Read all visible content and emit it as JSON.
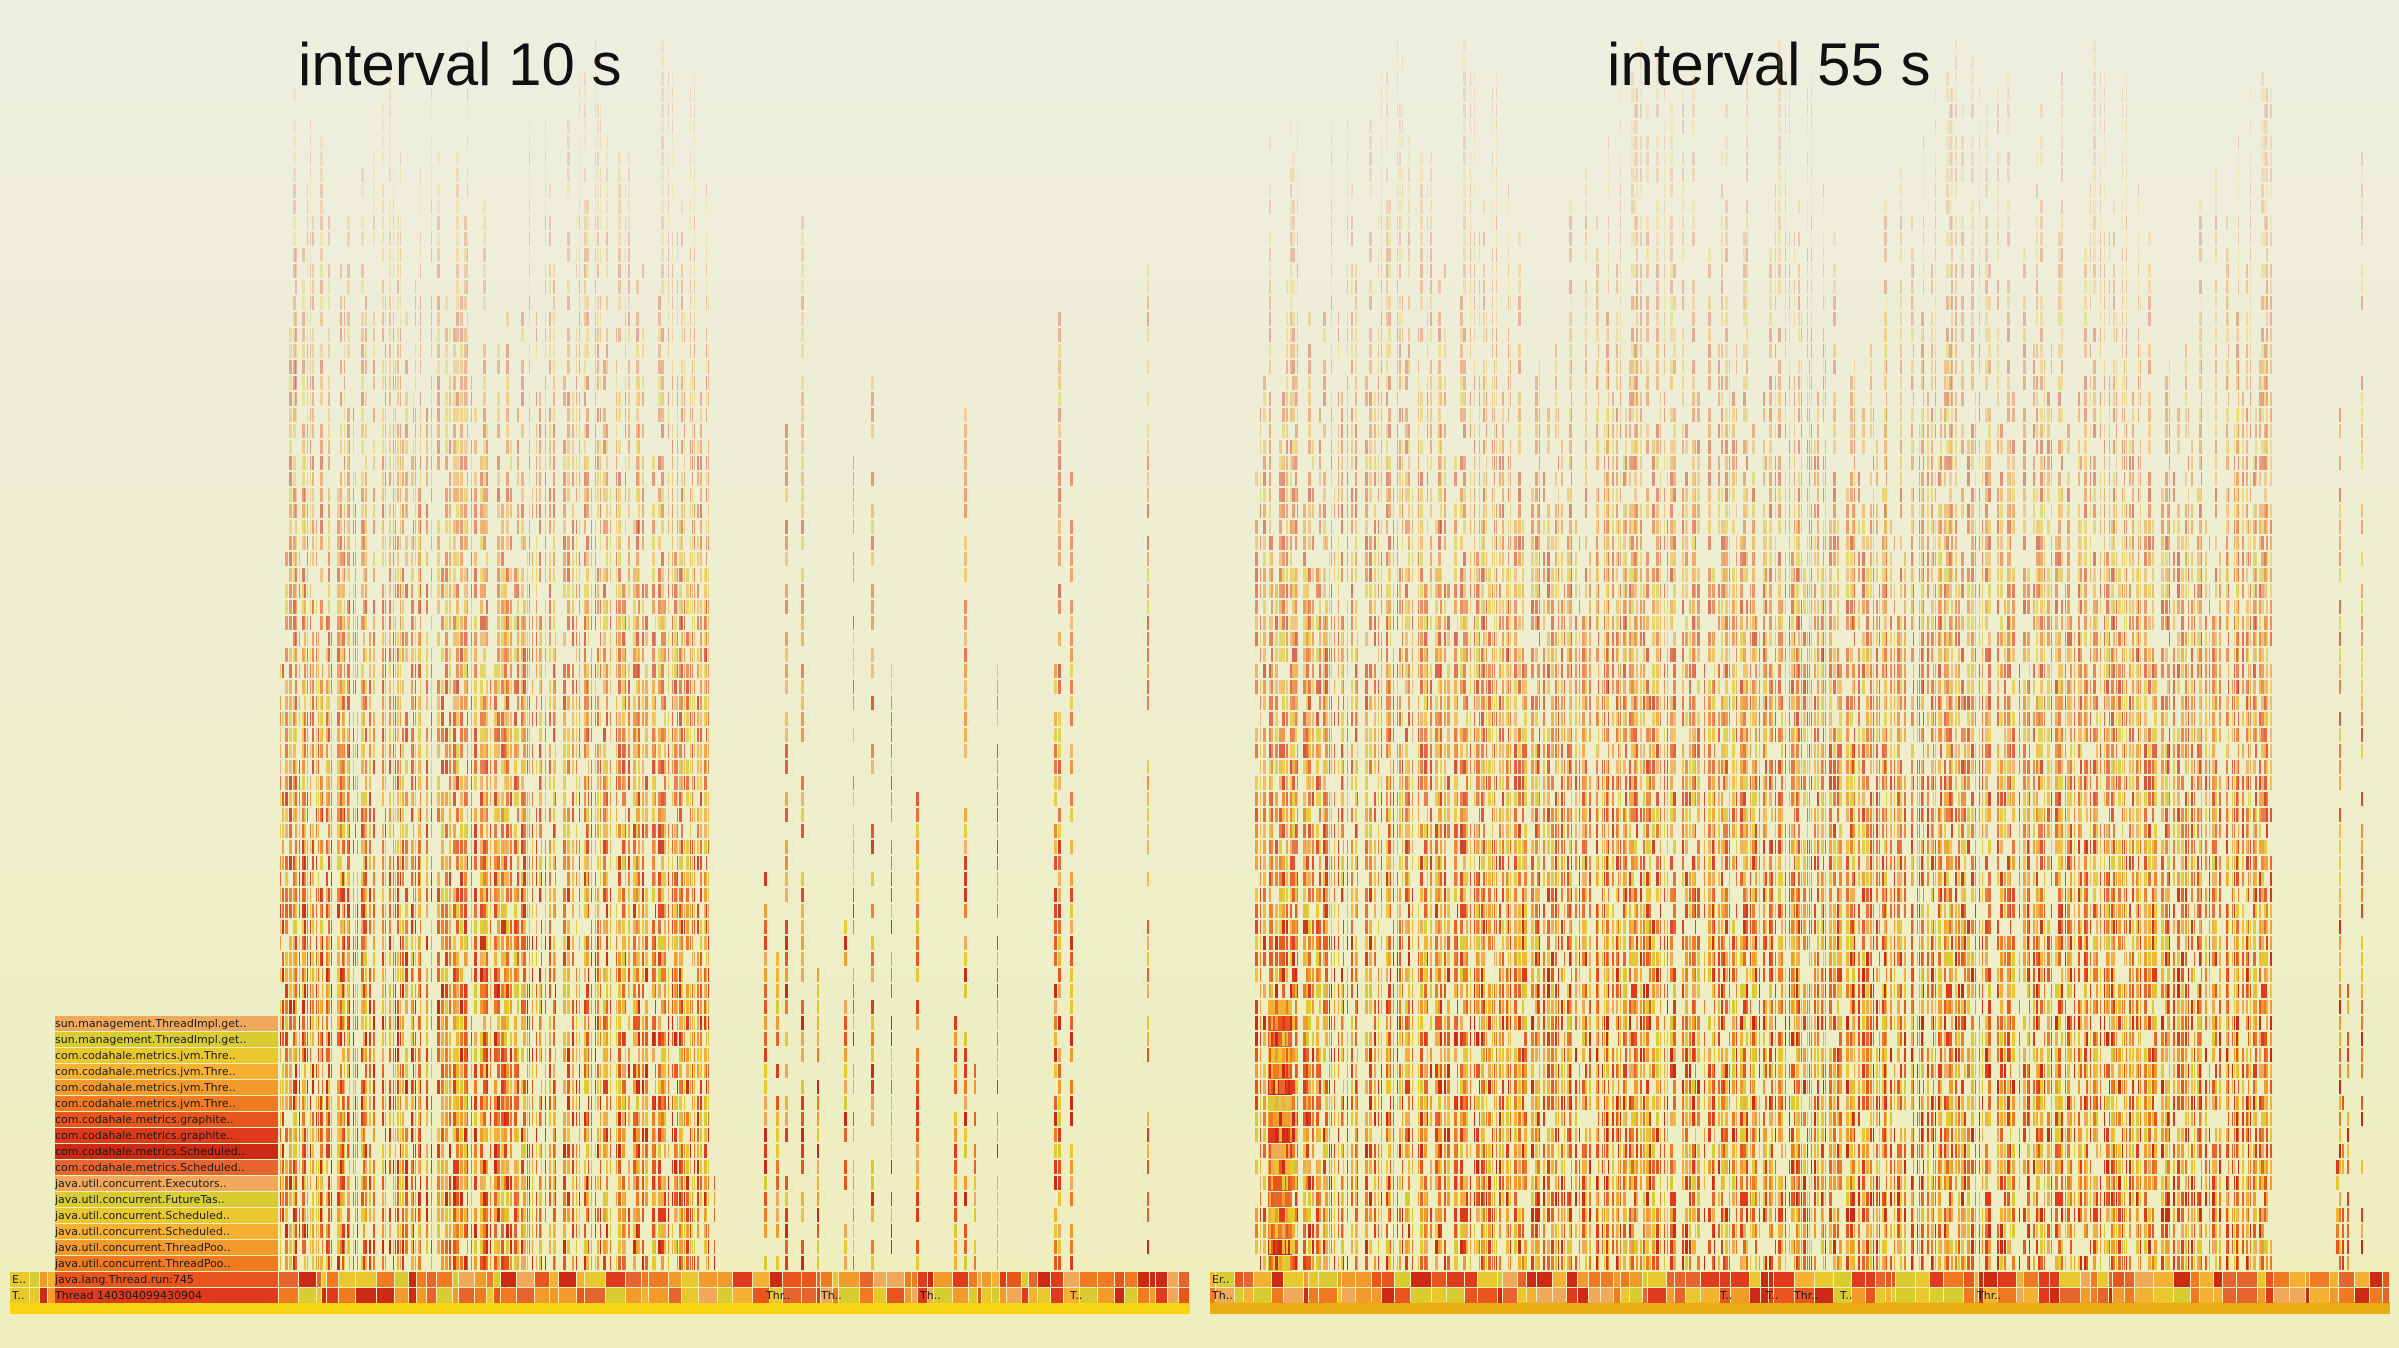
{
  "panels": [
    {
      "title": "interval 10 s",
      "root_color": "#f9d614",
      "stack_labels": [
        "Thread 140304099430904",
        "java.lang.Thread.run:745",
        "java.util.concurrent.ThreadPoo..",
        "java.util.concurrent.ThreadPoo..",
        "java.util.concurrent.Scheduled..",
        "java.util.concurrent.Scheduled..",
        "java.util.concurrent.FutureTas..",
        "java.util.concurrent.Executors..",
        "com.codahale.metrics.Scheduled..",
        "com.codahale.metrics.Scheduled..",
        "com.codahale.metrics.graphite..",
        "com.codahale.metrics.graphite..",
        "com.codahale.metrics.jvm.Thre..",
        "com.codahale.metrics.jvm.Thre..",
        "com.codahale.metrics.jvm.Thre..",
        "com.codahale.metrics.jvm.Thre..",
        "sun.management.ThreadImpl.get..",
        "sun.management.ThreadImpl.get.."
      ],
      "left_stub_labels": [
        "T..",
        "E.."
      ],
      "thread_labels": [
        "Thr..",
        "Th..",
        "Th..",
        "T.."
      ]
    },
    {
      "title": "interval 55 s",
      "root_color": "#e8ad10",
      "left_stub_labels": [
        "Th..",
        "Er.."
      ],
      "thread_labels": [
        "T..",
        "T..",
        "Thr..",
        "T..",
        "Thr.."
      ]
    }
  ],
  "palette": [
    "#e03a1c",
    "#e8561e",
    "#ef7a22",
    "#f29a2a",
    "#f5b232",
    "#e8c82c",
    "#d8cc30",
    "#f0a85a",
    "#e6652e",
    "#cc2a14"
  ]
}
